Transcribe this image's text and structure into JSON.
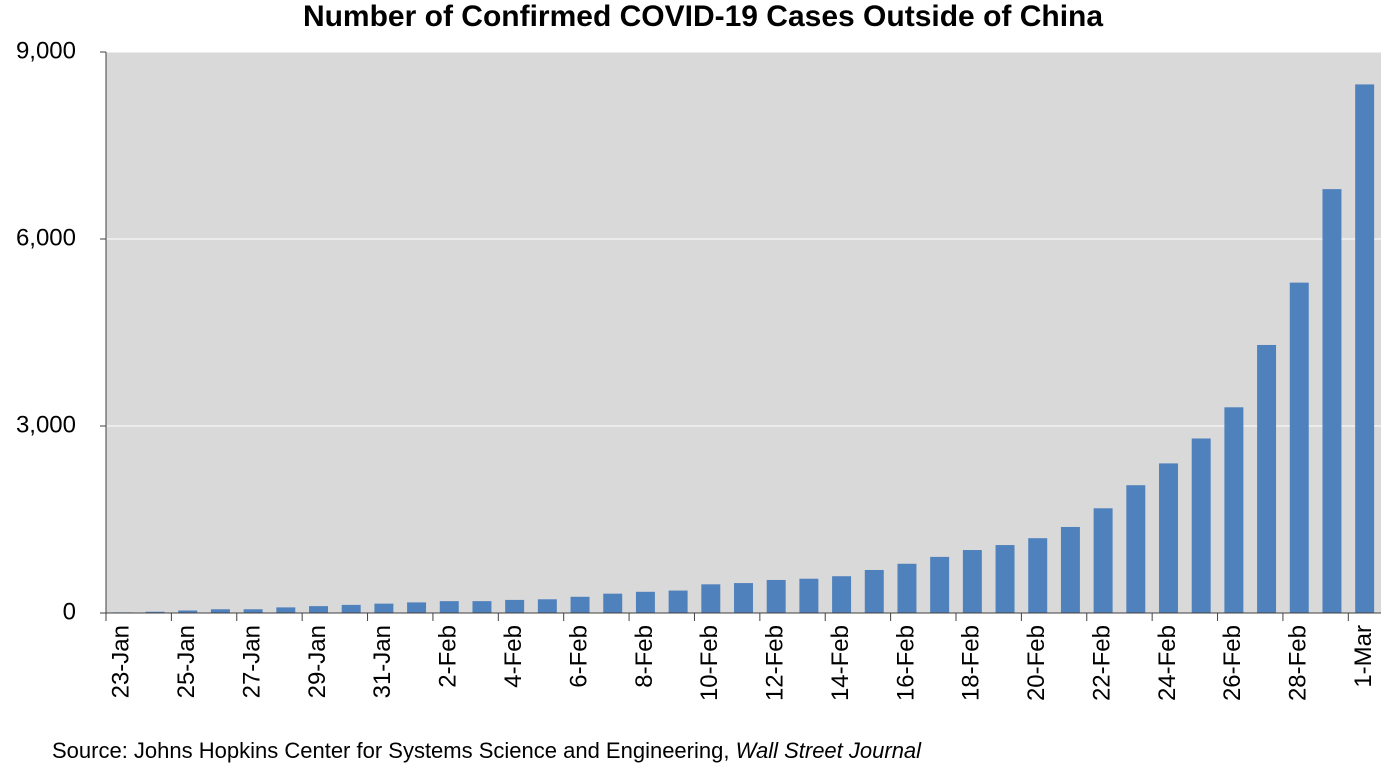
{
  "chart_data": {
    "type": "bar",
    "title": "Number of Confirmed COVID-19 Cases Outside of China",
    "source": "Source: Johns Hopkins Center for Systems Science and Engineering, ",
    "source_publication": "Wall Street Journal",
    "categories": [
      "23-Jan",
      null,
      "25-Jan",
      null,
      "27-Jan",
      null,
      "29-Jan",
      null,
      "31-Jan",
      null,
      "2-Feb",
      null,
      "4-Feb",
      null,
      "6-Feb",
      null,
      "8-Feb",
      null,
      "10-Feb",
      null,
      "12-Feb",
      null,
      "14-Feb",
      null,
      "16-Feb",
      null,
      "18-Feb",
      null,
      "20-Feb",
      null,
      "22-Feb",
      null,
      "24-Feb",
      null,
      "26-Feb",
      null,
      "28-Feb",
      null,
      "1-Mar"
    ],
    "values": [
      10,
      20,
      40,
      60,
      60,
      90,
      110,
      130,
      150,
      170,
      190,
      190,
      210,
      220,
      260,
      310,
      340,
      360,
      460,
      480,
      530,
      550,
      590,
      690,
      790,
      900,
      1010,
      1090,
      1200,
      1380,
      1680,
      2050,
      2400,
      2800,
      3300,
      4300,
      5300,
      6800,
      8480
    ],
    "color": "#4f81bd",
    "ylim": [
      0,
      9000
    ],
    "yticks": [
      0,
      {
        "value": 3000,
        "label": "3,000"
      },
      {
        "value": 6000,
        "label": "6,000"
      },
      {
        "value": 9000,
        "label": "9,000"
      }
    ],
    "grid": true
  }
}
